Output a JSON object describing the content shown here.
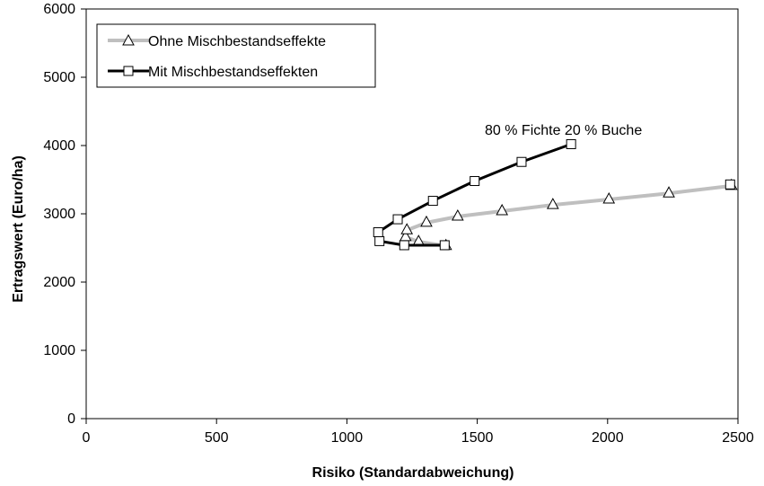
{
  "chart_data": {
    "type": "line",
    "title": "",
    "xlabel": "Risiko (Standardabweichung)",
    "ylabel": "Ertragswert (Euro/ha)",
    "xlim": [
      0,
      2500
    ],
    "ylim": [
      0,
      6000
    ],
    "x_ticks": [
      0,
      500,
      1000,
      1500,
      2000,
      2500
    ],
    "y_ticks": [
      0,
      1000,
      2000,
      3000,
      4000,
      5000,
      6000
    ],
    "x_tick_labels": [
      "0",
      "500",
      "1000",
      "1500",
      "2000",
      "2500"
    ],
    "y_tick_labels": [
      "0",
      "1000",
      "2000",
      "3000",
      "4000",
      "5000",
      "6000"
    ],
    "grid": false,
    "legend_position": "top-left",
    "annotation": "80 % Fichte 20 % Buche",
    "series": [
      {
        "name": "Ohne Mischbestandseffekte",
        "color": "#bfbfbf",
        "marker": "triangle",
        "points": [
          {
            "x": 1380,
            "y": 2530
          },
          {
            "x": 1275,
            "y": 2590
          },
          {
            "x": 1225,
            "y": 2660
          },
          {
            "x": 1230,
            "y": 2760
          },
          {
            "x": 1305,
            "y": 2870
          },
          {
            "x": 1425,
            "y": 2960
          },
          {
            "x": 1595,
            "y": 3040
          },
          {
            "x": 1790,
            "y": 3130
          },
          {
            "x": 2005,
            "y": 3210
          },
          {
            "x": 2235,
            "y": 3300
          },
          {
            "x": 2475,
            "y": 3410
          }
        ]
      },
      {
        "name": "Mit Mischbestandseffekten",
        "color": "#000000",
        "marker": "square",
        "points": [
          {
            "x": 1375,
            "y": 2540
          },
          {
            "x": 1220,
            "y": 2540
          },
          {
            "x": 1125,
            "y": 2600
          },
          {
            "x": 1120,
            "y": 2730
          },
          {
            "x": 1195,
            "y": 2920
          },
          {
            "x": 1330,
            "y": 3190
          },
          {
            "x": 1490,
            "y": 3480
          },
          {
            "x": 1670,
            "y": 3760
          },
          {
            "x": 1860,
            "y": 4020
          }
        ]
      },
      {
        "name": "",
        "color": "#000000",
        "marker": "square",
        "points": [
          {
            "x": 2470,
            "y": 3430
          }
        ]
      }
    ]
  }
}
